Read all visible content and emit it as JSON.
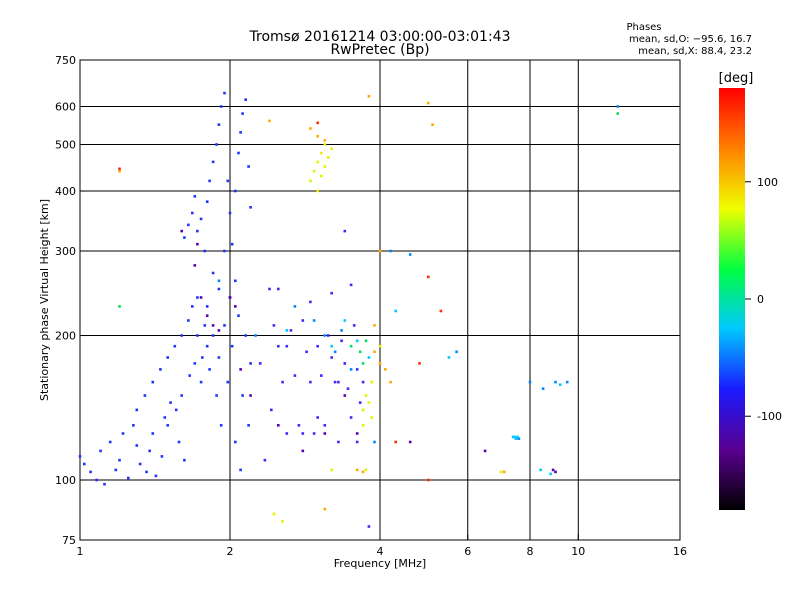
{
  "chart_data": {
    "type": "scatter",
    "title_line1": "Tromsø 20161214 03:00:00-03:01:43",
    "title_line2": "RwPretec (Bp)",
    "info_title": "Phases",
    "info_line1": "mean, sd,O: −95.6, 16.7",
    "info_line2": "mean, sd,X:  88.4, 23.2",
    "xlabel": "Frequency [MHz]",
    "ylabel": "Stationary phase Virtual Height [km]",
    "x_scale": "log",
    "y_scale": "log",
    "xlim": [
      1,
      16
    ],
    "ylim": [
      75,
      750
    ],
    "x_ticks": [
      1,
      2,
      4,
      6,
      8,
      10,
      16
    ],
    "y_ticks": [
      75,
      100,
      200,
      300,
      400,
      500,
      600,
      750
    ],
    "x_gridlines": [
      2,
      4,
      6,
      8,
      10
    ],
    "y_gridlines": [
      100,
      200,
      300,
      400,
      500,
      600
    ],
    "grid": true,
    "colorbar": {
      "label": "[deg]",
      "range": [
        -180,
        180
      ],
      "ticks": [
        100,
        0,
        -100
      ],
      "colors": [
        "#000000",
        "#5a0090",
        "#1a1aff",
        "#00c8ff",
        "#00ff40",
        "#f0ff00",
        "#ff8000",
        "#ff0000"
      ]
    },
    "series": [
      {
        "phase": -100,
        "color": "#2233ff",
        "points": [
          [
            1.0,
            112
          ],
          [
            1.02,
            108
          ],
          [
            1.05,
            104
          ],
          [
            1.08,
            100
          ],
          [
            1.1,
            115
          ],
          [
            1.12,
            98
          ],
          [
            1.15,
            120
          ],
          [
            1.18,
            105
          ],
          [
            1.2,
            110
          ],
          [
            1.22,
            125
          ],
          [
            1.25,
            101
          ],
          [
            1.28,
            130
          ],
          [
            1.3,
            140
          ],
          [
            1.32,
            108
          ],
          [
            1.35,
            150
          ],
          [
            1.38,
            115
          ],
          [
            1.4,
            160
          ],
          [
            1.42,
            102
          ],
          [
            1.45,
            170
          ],
          [
            1.48,
            135
          ],
          [
            1.5,
            180
          ],
          [
            1.52,
            145
          ],
          [
            1.55,
            190
          ],
          [
            1.58,
            120
          ],
          [
            1.6,
            200
          ],
          [
            1.62,
            110
          ],
          [
            1.62,
            320
          ],
          [
            1.65,
            215
          ],
          [
            1.65,
            340
          ],
          [
            1.68,
            230
          ],
          [
            1.68,
            360
          ],
          [
            1.7,
            175
          ],
          [
            1.7,
            390
          ],
          [
            1.72,
            240
          ],
          [
            1.72,
            330
          ],
          [
            1.75,
            160
          ],
          [
            1.75,
            350
          ],
          [
            1.78,
            210
          ],
          [
            1.78,
            300
          ],
          [
            1.8,
            190
          ],
          [
            1.8,
            380
          ],
          [
            1.82,
            170
          ],
          [
            1.82,
            420
          ],
          [
            1.85,
            200
          ],
          [
            1.85,
            460
          ],
          [
            1.88,
            150
          ],
          [
            1.88,
            500
          ],
          [
            1.9,
            180
          ],
          [
            1.9,
            550
          ],
          [
            1.92,
            130
          ],
          [
            1.92,
            600
          ],
          [
            1.95,
            210
          ],
          [
            1.95,
            640
          ],
          [
            1.98,
            160
          ],
          [
            1.98,
            420
          ],
          [
            2.0,
            240
          ],
          [
            2.0,
            360
          ],
          [
            2.02,
            190
          ],
          [
            2.02,
            310
          ],
          [
            2.05,
            120
          ],
          [
            2.05,
            400
          ],
          [
            2.08,
            220
          ],
          [
            2.08,
            480
          ],
          [
            2.1,
            105
          ],
          [
            2.1,
            530
          ],
          [
            2.12,
            150
          ],
          [
            2.12,
            580
          ],
          [
            2.15,
            200
          ],
          [
            2.15,
            620
          ],
          [
            2.18,
            130
          ],
          [
            2.18,
            450
          ],
          [
            2.2,
            175
          ],
          [
            2.2,
            370
          ],
          [
            1.8,
            230
          ],
          [
            1.9,
            250
          ],
          [
            1.72,
            200
          ],
          [
            1.6,
            150
          ],
          [
            1.5,
            130
          ],
          [
            1.4,
            125
          ],
          [
            1.3,
            118
          ],
          [
            1.85,
            270
          ],
          [
            1.95,
            300
          ],
          [
            2.05,
            260
          ],
          [
            1.76,
            180
          ],
          [
            1.66,
            165
          ],
          [
            1.56,
            140
          ],
          [
            1.46,
            112
          ],
          [
            1.36,
            104
          ]
        ]
      },
      {
        "phase": -110,
        "color": "#3a2aff",
        "points": [
          [
            2.4,
            250
          ],
          [
            2.45,
            210
          ],
          [
            2.5,
            190
          ],
          [
            2.55,
            160
          ],
          [
            2.6,
            125
          ],
          [
            2.65,
            205
          ],
          [
            2.7,
            165
          ],
          [
            2.75,
            130
          ],
          [
            2.8,
            215
          ],
          [
            2.85,
            185
          ],
          [
            2.9,
            160
          ],
          [
            2.95,
            125
          ],
          [
            3.0,
            190
          ],
          [
            3.05,
            165
          ],
          [
            3.1,
            130
          ],
          [
            3.15,
            200
          ],
          [
            3.2,
            180
          ],
          [
            3.25,
            160
          ],
          [
            3.3,
            120
          ],
          [
            3.35,
            195
          ],
          [
            3.4,
            175
          ],
          [
            3.45,
            155
          ],
          [
            3.5,
            135
          ],
          [
            3.55,
            210
          ],
          [
            3.6,
            170
          ],
          [
            3.65,
            145
          ],
          [
            2.5,
            250
          ],
          [
            2.9,
            235
          ],
          [
            3.2,
            245
          ],
          [
            3.5,
            255
          ],
          [
            3.4,
            330
          ],
          [
            3.7,
            160
          ],
          [
            2.3,
            175
          ],
          [
            2.35,
            110
          ],
          [
            2.42,
            140
          ],
          [
            2.6,
            190
          ],
          [
            2.8,
            125
          ],
          [
            3.0,
            135
          ],
          [
            3.3,
            160
          ],
          [
            3.6,
            120
          ],
          [
            3.8,
            80
          ]
        ]
      },
      {
        "phase": -130,
        "color": "#5a00b0",
        "points": [
          [
            1.6,
            330
          ],
          [
            1.7,
            280
          ],
          [
            1.8,
            220
          ],
          [
            1.9,
            205
          ],
          [
            2.0,
            240
          ],
          [
            2.1,
            170
          ],
          [
            1.75,
            240
          ],
          [
            1.85,
            210
          ],
          [
            2.2,
            150
          ],
          [
            2.5,
            130
          ],
          [
            2.8,
            115
          ],
          [
            3.1,
            125
          ],
          [
            3.4,
            150
          ],
          [
            3.6,
            125
          ],
          [
            8.9,
            105
          ],
          [
            9.0,
            104
          ],
          [
            6.5,
            115
          ],
          [
            4.6,
            120
          ],
          [
            1.72,
            310
          ],
          [
            2.05,
            230
          ]
        ]
      },
      {
        "phase": -80,
        "color": "#0088ff",
        "points": [
          [
            2.7,
            230
          ],
          [
            2.95,
            215
          ],
          [
            3.1,
            200
          ],
          [
            3.25,
            185
          ],
          [
            3.35,
            205
          ],
          [
            3.5,
            170
          ],
          [
            4.2,
            300
          ],
          [
            4.6,
            295
          ],
          [
            5.7,
            185
          ],
          [
            7.5,
            122
          ],
          [
            7.6,
            122
          ],
          [
            8.0,
            160
          ],
          [
            8.5,
            155
          ],
          [
            9.0,
            160
          ],
          [
            9.5,
            160
          ],
          [
            12.0,
            600
          ],
          [
            3.9,
            120
          ],
          [
            1.9,
            260
          ],
          [
            2.25,
            200
          ]
        ]
      },
      {
        "phase": -40,
        "color": "#00c8ff",
        "points": [
          [
            3.8,
            180
          ],
          [
            3.2,
            190
          ],
          [
            3.4,
            215
          ],
          [
            2.6,
            205
          ],
          [
            7.4,
            123
          ],
          [
            7.5,
            122
          ],
          [
            7.45,
            123
          ],
          [
            7.55,
            123
          ],
          [
            8.4,
            105
          ],
          [
            8.8,
            103
          ],
          [
            9.2,
            158
          ],
          [
            3.6,
            195
          ],
          [
            5.5,
            180
          ],
          [
            4.3,
            225
          ]
        ]
      },
      {
        "phase": 30,
        "color": "#00e060",
        "points": [
          [
            1.2,
            230
          ],
          [
            3.5,
            190
          ],
          [
            3.7,
            175
          ],
          [
            3.75,
            195
          ],
          [
            12.0,
            580
          ],
          [
            3.65,
            185
          ]
        ]
      },
      {
        "phase": 100,
        "color": "#e8f000",
        "points": [
          [
            2.9,
            420
          ],
          [
            2.95,
            440
          ],
          [
            3.0,
            460
          ],
          [
            3.0,
            400
          ],
          [
            3.05,
            480
          ],
          [
            3.05,
            430
          ],
          [
            3.1,
            500
          ],
          [
            3.1,
            450
          ],
          [
            3.15,
            470
          ],
          [
            3.2,
            490
          ],
          [
            3.7,
            140
          ],
          [
            3.75,
            150
          ],
          [
            3.8,
            145
          ],
          [
            3.7,
            130
          ],
          [
            3.85,
            135
          ],
          [
            2.45,
            85
          ],
          [
            2.55,
            82
          ],
          [
            4.0,
            190
          ],
          [
            3.85,
            160
          ],
          [
            3.2,
            105
          ],
          [
            3.75,
            105
          ],
          [
            7.0,
            104
          ]
        ]
      },
      {
        "phase": 150,
        "color": "#ffaa00",
        "points": [
          [
            3.1,
            510
          ],
          [
            3.0,
            520
          ],
          [
            3.6,
            105
          ],
          [
            3.7,
            104
          ],
          [
            3.9,
            210
          ],
          [
            4.0,
            175
          ],
          [
            4.2,
            160
          ],
          [
            4.0,
            300
          ],
          [
            3.1,
            87
          ],
          [
            3.8,
            630
          ],
          [
            5.1,
            550
          ],
          [
            5.0,
            610
          ],
          [
            1.2,
            440
          ],
          [
            2.4,
            560
          ],
          [
            2.9,
            540
          ],
          [
            3.9,
            185
          ],
          [
            4.1,
            170
          ],
          [
            7.1,
            104
          ]
        ]
      },
      {
        "phase": 175,
        "color": "#ff3000",
        "points": [
          [
            1.2,
            445
          ],
          [
            3.0,
            555
          ],
          [
            4.3,
            120
          ],
          [
            5.0,
            265
          ],
          [
            5.3,
            225
          ],
          [
            4.8,
            175
          ],
          [
            5.0,
            100
          ]
        ]
      }
    ]
  }
}
